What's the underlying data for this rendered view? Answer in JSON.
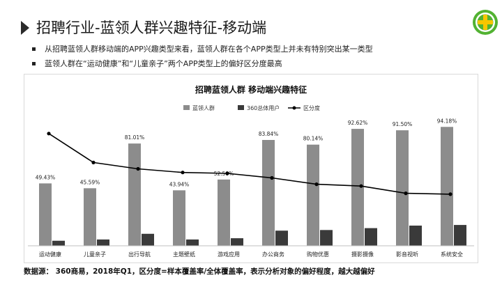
{
  "page": {
    "title": "招聘行业-蓝领人群兴趣特征-移动端",
    "bullets": [
      "从招聘蓝领人群移动端的APP兴趣类型来看，蓝领人群在各个APP类型上并未有特别突出某一类型",
      "蓝领人群在“运动健康”和“儿童亲子”两个APP类型上的偏好区分度最高"
    ],
    "source": "数据源： 360商易，2018年Q1，区分度=样本覆盖率/全体覆盖率，表示分析对象的偏好程度，越大越偏好",
    "logo_icon": "360-plus-logo-icon"
  },
  "colors": {
    "bar_primary": "#8c8c8c",
    "bar_secondary": "#3a3a3a",
    "line": "#000000",
    "logo_green": "#52b232",
    "logo_yellow": "#f7c600"
  },
  "chart_data": {
    "type": "bar",
    "title": "招聘蓝领人群 移动端兴趣特征",
    "legend_position": "top-center",
    "grid": false,
    "categories": [
      "运动健康",
      "儿童亲子",
      "出行导航",
      "主题壁纸",
      "游戏应用",
      "办公商务",
      "购物优惠",
      "摄影摄像",
      "影音视听",
      "系统安全"
    ],
    "ylim": [
      0,
      100
    ],
    "series": [
      {
        "name": "蓝领人群",
        "type": "bar",
        "values": [
          49.43,
          45.59,
          81.01,
          43.94,
          52.5,
          83.84,
          80.14,
          92.62,
          91.5,
          94.18
        ],
        "labels": [
          "49.43%",
          "45.59%",
          "81.01%",
          "43.94%",
          "52.50%",
          "83.84%",
          "80.14%",
          "92.62%",
          "91.50%",
          "94.18%"
        ]
      },
      {
        "name": "360总体用户",
        "type": "bar",
        "values": [
          4,
          5,
          9.5,
          5,
          6,
          12,
          12.5,
          14,
          16,
          16.5
        ]
      },
      {
        "name": "区分度",
        "type": "line",
        "values": [
          12.4,
          9.2,
          8.5,
          8.1,
          8.0,
          7.5,
          6.8,
          6.6,
          5.8,
          5.7
        ]
      }
    ]
  }
}
